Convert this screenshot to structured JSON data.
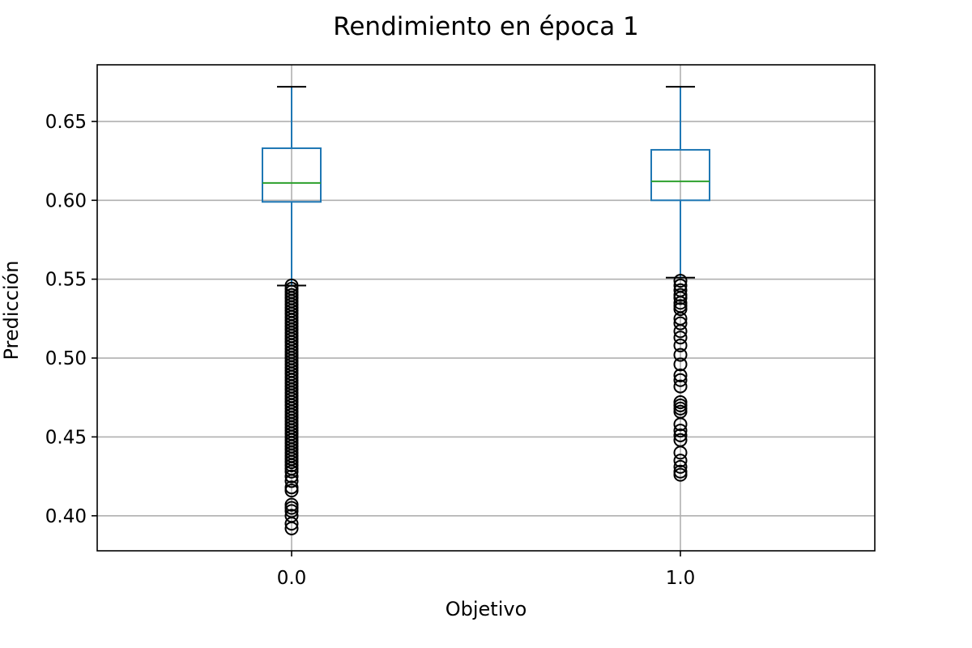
{
  "colors": {
    "box": "#1f77b4",
    "median": "#2ca02c",
    "caps": "#000000",
    "outliers": "#000000",
    "grid": "#b0b0b0",
    "frame": "#000000",
    "background": "#ffffff"
  },
  "chart_data": {
    "type": "box",
    "title": "Rendimiento en época 1",
    "xlabel": "Objetivo",
    "ylabel": "Predicción",
    "categories": [
      "0.0",
      "1.0"
    ],
    "ylim": [
      0.3778,
      0.6859
    ],
    "yticks": [
      0.4,
      0.45,
      0.5,
      0.55,
      0.6,
      0.65
    ],
    "ytick_labels": [
      "0.40",
      "0.45",
      "0.50",
      "0.55",
      "0.60",
      "0.65"
    ],
    "grid": true,
    "legend": "none",
    "boxes": [
      {
        "category": "0.0",
        "whisker_low": 0.546,
        "q1": 0.599,
        "median": 0.611,
        "q3": 0.633,
        "whisker_high": 0.672,
        "outliers": [
          0.392,
          0.395,
          0.4,
          0.403,
          0.405,
          0.407,
          0.416,
          0.418,
          0.422,
          0.425,
          0.428,
          0.43,
          0.432,
          0.434,
          0.436,
          0.438,
          0.44,
          0.442,
          0.444,
          0.446,
          0.448,
          0.45,
          0.452,
          0.454,
          0.456,
          0.458,
          0.46,
          0.462,
          0.464,
          0.466,
          0.468,
          0.47,
          0.472,
          0.474,
          0.476,
          0.478,
          0.48,
          0.482,
          0.484,
          0.486,
          0.488,
          0.49,
          0.492,
          0.494,
          0.496,
          0.498,
          0.5,
          0.502,
          0.504,
          0.506,
          0.508,
          0.51,
          0.512,
          0.514,
          0.516,
          0.518,
          0.52,
          0.522,
          0.524,
          0.526,
          0.528,
          0.53,
          0.532,
          0.534,
          0.536,
          0.538,
          0.54,
          0.542,
          0.544,
          0.546
        ]
      },
      {
        "category": "1.0",
        "whisker_low": 0.551,
        "q1": 0.6,
        "median": 0.612,
        "q3": 0.632,
        "whisker_high": 0.672,
        "outliers": [
          0.426,
          0.428,
          0.431,
          0.435,
          0.44,
          0.448,
          0.451,
          0.454,
          0.458,
          0.466,
          0.468,
          0.47,
          0.472,
          0.482,
          0.486,
          0.489,
          0.496,
          0.502,
          0.508,
          0.513,
          0.517,
          0.522,
          0.525,
          0.531,
          0.533,
          0.535,
          0.538,
          0.54,
          0.543,
          0.546,
          0.549
        ]
      }
    ]
  }
}
